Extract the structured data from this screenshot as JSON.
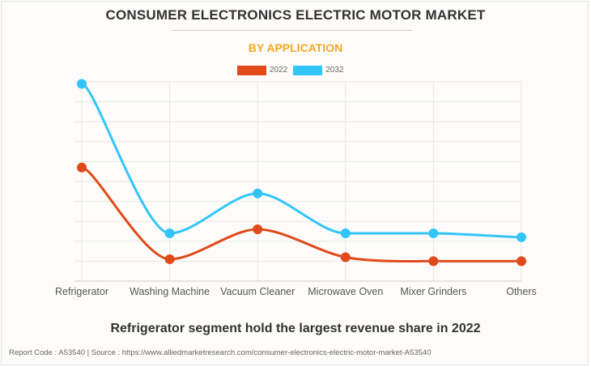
{
  "page": {
    "title": "CONSUMER ELECTRONICS ELECTRIC MOTOR MARKET",
    "subtitle": "BY APPLICATION",
    "caption": "Refrigerator segment hold the largest revenue share in 2022",
    "source": "Report Code : A53540  |  Source : https://www.alliedmarketresearch.com/consumer-electronics-electric-motor-market-A53540"
  },
  "colors": {
    "series_2022": "#e04a1b",
    "series_2032": "#33c5f8",
    "title": "#333333",
    "subtitle": "#f5a623",
    "grid": "#e6e6e6"
  },
  "chart_data": {
    "type": "line",
    "title": "CONSUMER ELECTRONICS ELECTRIC MOTOR MARKET",
    "subtitle": "BY APPLICATION",
    "xlabel": "",
    "ylabel": "",
    "y_units": "relative (unlabeled axis; 1 unit = 1 gridline)",
    "ylim": [
      0,
      10
    ],
    "grid": true,
    "legend": "top-center",
    "categories": [
      "Refrigerator",
      "Washing Machine",
      "Vacuum Cleaner",
      "Microwave Oven",
      "Mixer Grinders",
      "Others"
    ],
    "series": [
      {
        "name": "2022",
        "values": [
          5.7,
          1.1,
          2.6,
          1.2,
          1.0,
          1.0
        ]
      },
      {
        "name": "2032",
        "values": [
          9.9,
          2.4,
          4.4,
          2.4,
          2.4,
          2.2
        ]
      }
    ]
  }
}
